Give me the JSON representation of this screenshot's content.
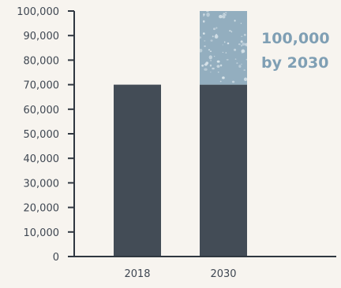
{
  "chart_data": {
    "type": "bar",
    "stacked": true,
    "categories": [
      "2018",
      "2030"
    ],
    "series": [
      {
        "values": [
          70000,
          70000
        ]
      },
      {
        "values": [
          0,
          30000
        ]
      }
    ],
    "yticks": [
      "0",
      "10,000",
      "20,000",
      "30,000",
      "40,000",
      "50,000",
      "60,000",
      "70,000",
      "80,000",
      "90,000",
      "100,000"
    ],
    "ylim": [
      0,
      100000
    ],
    "xlabel": "",
    "ylabel": "",
    "grid": false,
    "annotation": [
      "100,000",
      "by 2030"
    ],
    "colors": {
      "base": "#434c56",
      "projection": "#93aebf",
      "speckle": "#d9e4ea",
      "axis": "#2f3740",
      "text": "#3f4752",
      "annotation": "#7f9fb4"
    }
  }
}
